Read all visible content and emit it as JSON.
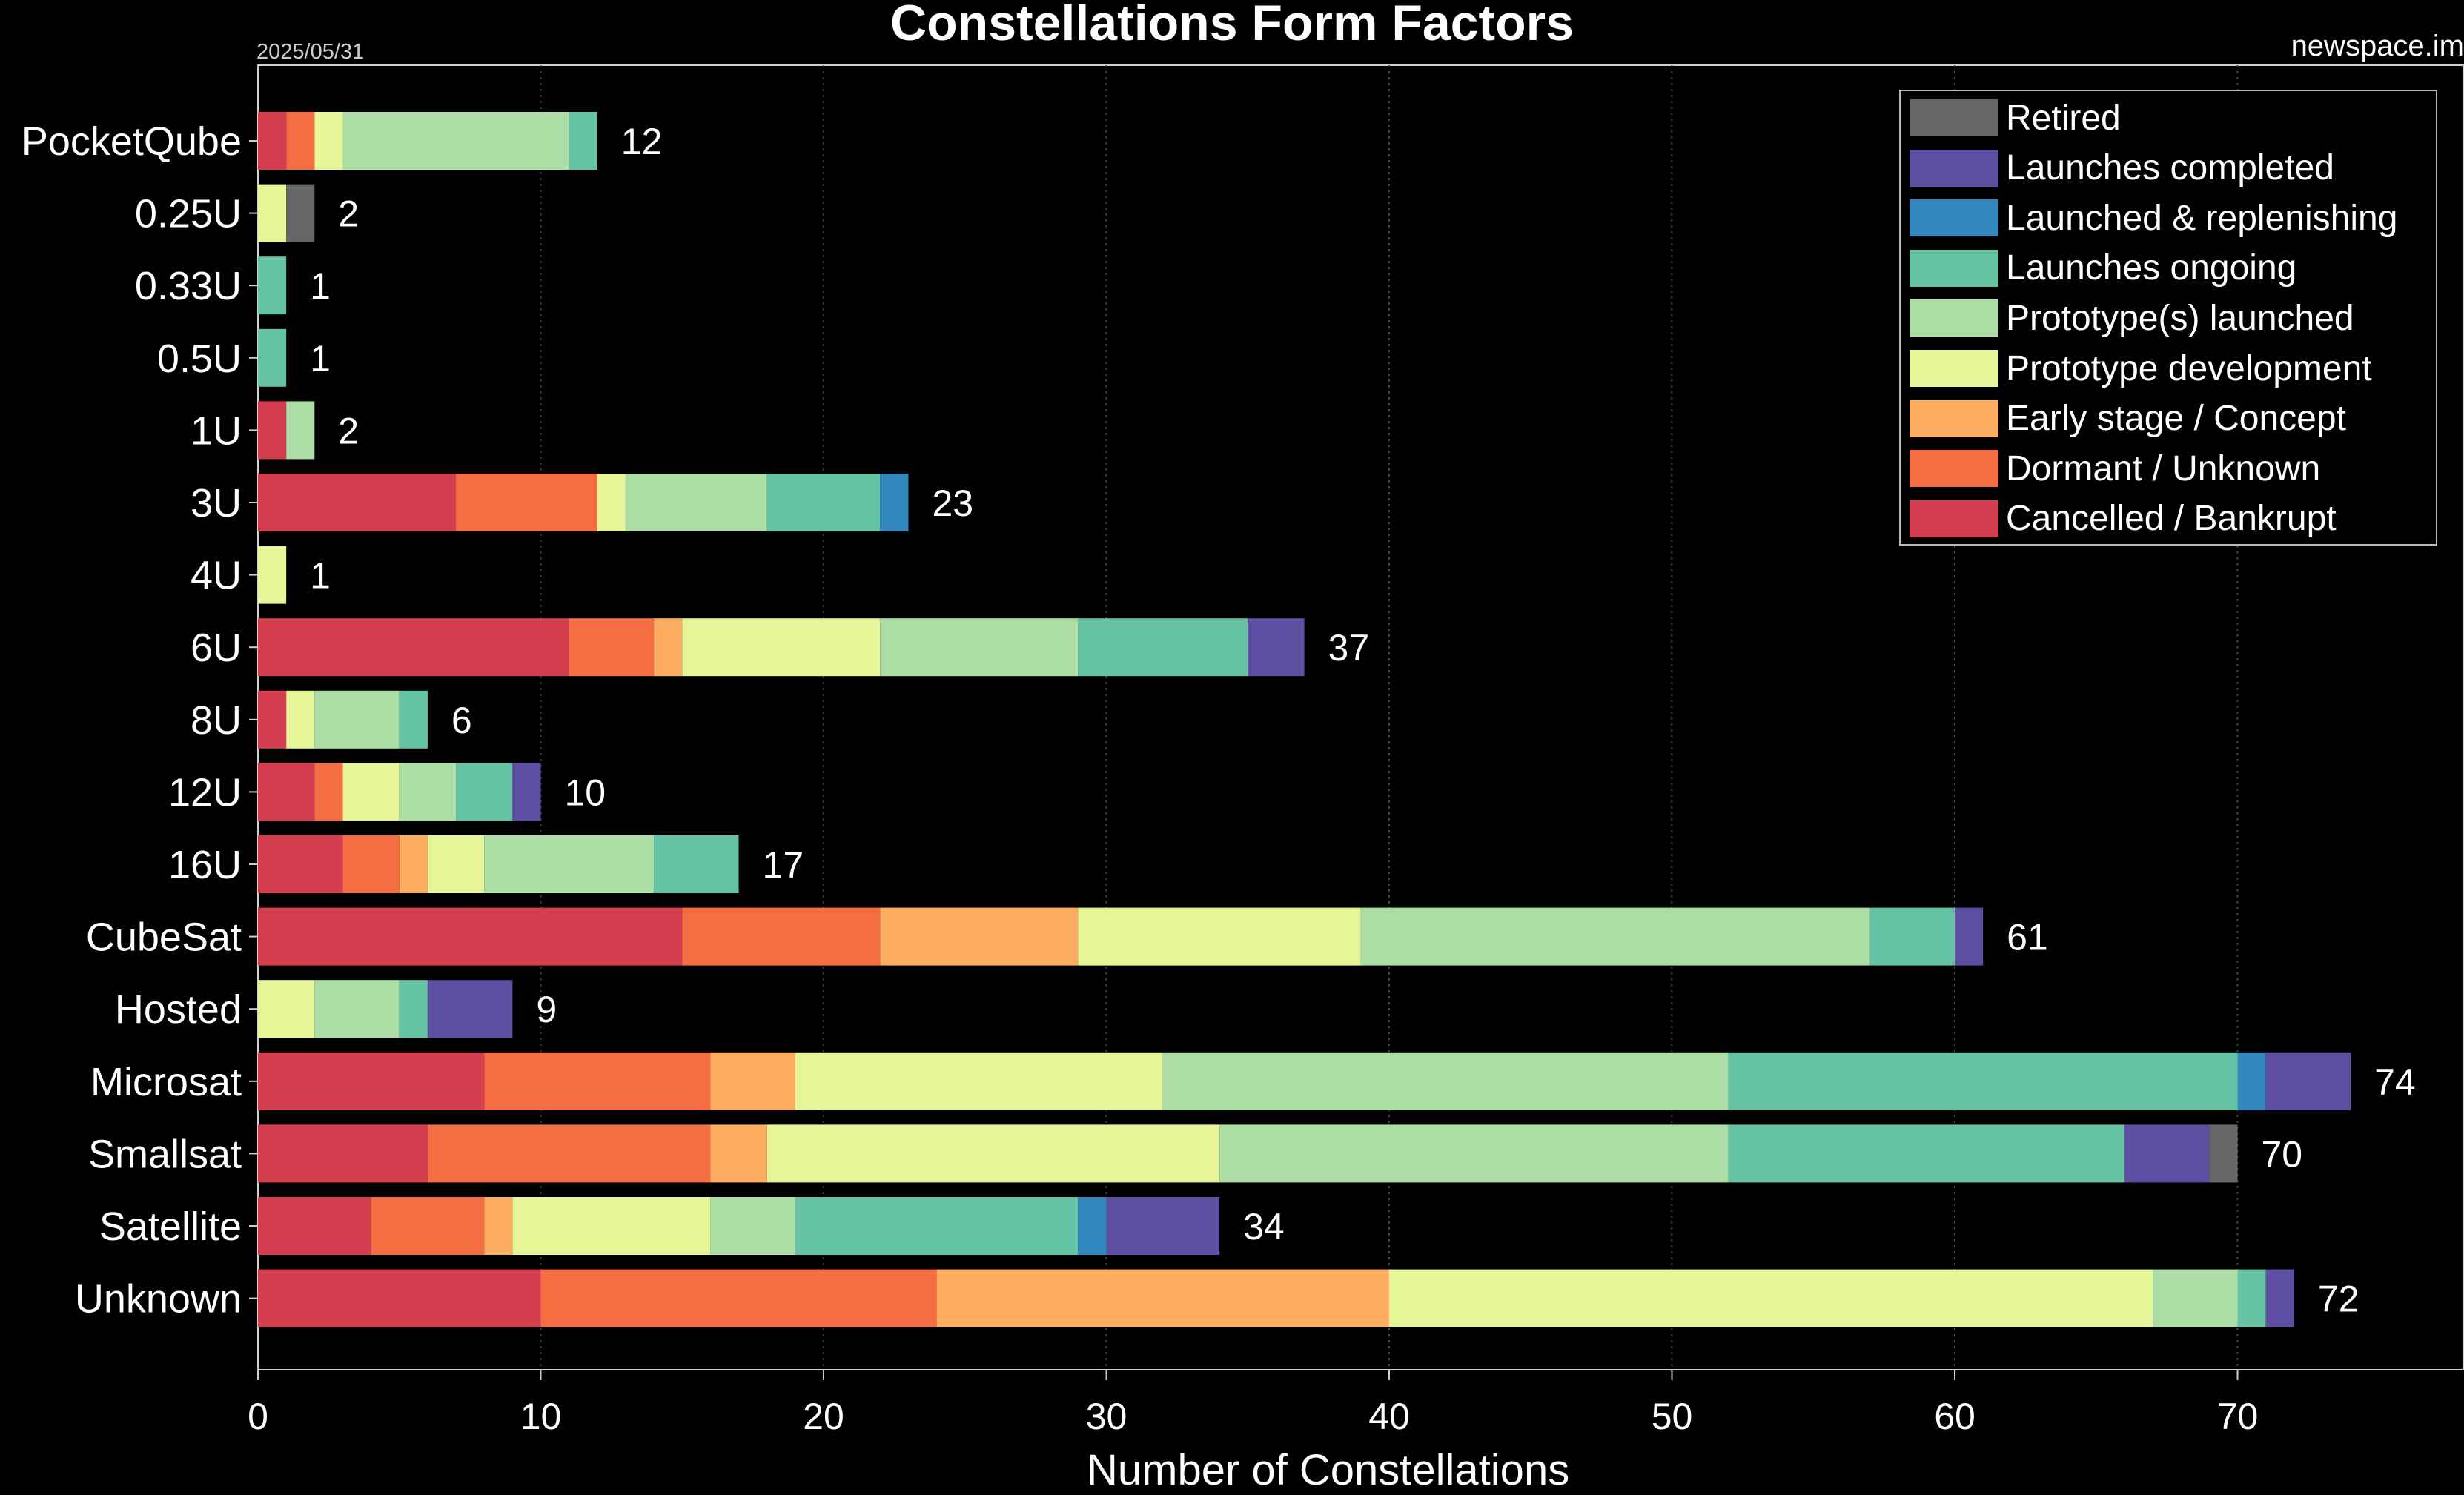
{
  "chart_data": {
    "type": "bar",
    "orientation": "horizontal",
    "stacked": true,
    "title": "Constellations Form Factors",
    "date": "2025/05/31",
    "source": "newspace.im",
    "xlabel": "Number of Constellations",
    "xlim": [
      0,
      78
    ],
    "xticks": [
      0,
      10,
      20,
      30,
      40,
      50,
      60,
      70
    ],
    "grid": "vertical",
    "legend_position": "top-right",
    "categories": [
      "PocketQube",
      "0.25U",
      "0.33U",
      "0.5U",
      "1U",
      "3U",
      "4U",
      "6U",
      "8U",
      "12U",
      "16U",
      "CubeSat",
      "Hosted",
      "Microsat",
      "Smallsat",
      "Satellite",
      "Unknown"
    ],
    "totals": [
      12,
      2,
      1,
      1,
      2,
      23,
      1,
      37,
      6,
      10,
      17,
      61,
      9,
      74,
      70,
      34,
      72
    ],
    "series": [
      {
        "name": "Cancelled / Bankrupt",
        "color": "#d53e4f",
        "values": [
          1,
          0,
          0,
          0,
          1,
          7,
          0,
          11,
          1,
          2,
          3,
          15,
          0,
          8,
          6,
          4,
          10
        ]
      },
      {
        "name": "Dormant / Unknown",
        "color": "#f46d43",
        "values": [
          1,
          0,
          0,
          0,
          0,
          5,
          0,
          3,
          0,
          1,
          2,
          7,
          0,
          8,
          10,
          4,
          14
        ]
      },
      {
        "name": "Early stage / Concept",
        "color": "#fdae61",
        "values": [
          0,
          0,
          0,
          0,
          0,
          0,
          0,
          1,
          0,
          0,
          1,
          7,
          0,
          3,
          2,
          1,
          16
        ]
      },
      {
        "name": "Prototype development",
        "color": "#e6f598",
        "values": [
          1,
          1,
          0,
          0,
          0,
          1,
          1,
          7,
          1,
          2,
          2,
          10,
          2,
          13,
          16,
          7,
          27
        ]
      },
      {
        "name": "Prototype(s) launched",
        "color": "#abdda4",
        "values": [
          8,
          0,
          0,
          0,
          1,
          5,
          0,
          7,
          3,
          2,
          6,
          18,
          3,
          20,
          18,
          3,
          3
        ]
      },
      {
        "name": "Launches ongoing",
        "color": "#66c2a5",
        "values": [
          1,
          0,
          1,
          1,
          0,
          4,
          0,
          6,
          1,
          2,
          3,
          3,
          1,
          18,
          14,
          10,
          1
        ]
      },
      {
        "name": "Launched & replenishing",
        "color": "#3288bd",
        "values": [
          0,
          0,
          0,
          0,
          0,
          1,
          0,
          0,
          0,
          0,
          0,
          0,
          0,
          1,
          0,
          1,
          0
        ]
      },
      {
        "name": "Launches completed",
        "color": "#5e4fa2",
        "values": [
          0,
          0,
          0,
          0,
          0,
          0,
          0,
          2,
          0,
          1,
          0,
          1,
          3,
          3,
          3,
          4,
          1
        ]
      },
      {
        "name": "Retired",
        "color": "#666666",
        "values": [
          0,
          1,
          0,
          0,
          0,
          0,
          0,
          0,
          0,
          0,
          0,
          0,
          0,
          0,
          1,
          0,
          0
        ]
      }
    ]
  }
}
